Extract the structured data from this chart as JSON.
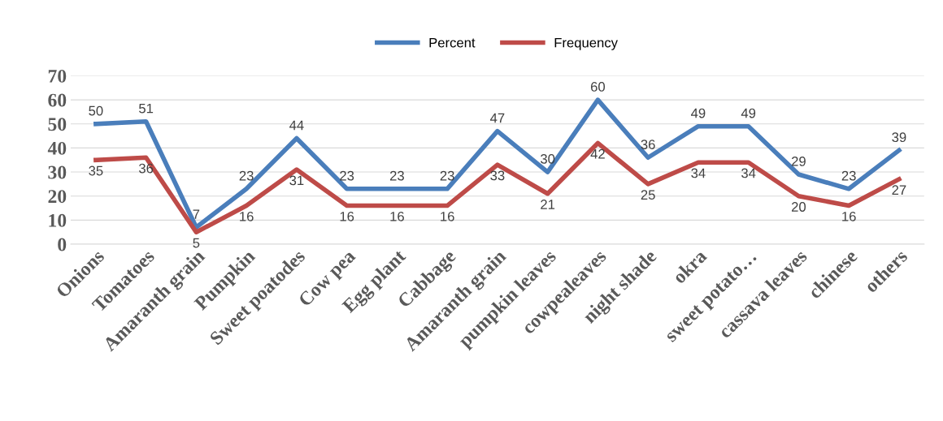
{
  "chart_data": {
    "type": "line",
    "categories": [
      "Onions",
      "Tomatoes",
      "Amaranth grain",
      "Pumpkin",
      "Sweet poatodes",
      "Cow pea",
      "Egg plant",
      "Cabbage",
      "Amaranth grain",
      "pumpkin leaves",
      "cowpealeaves",
      "night shade",
      "okra",
      "sweet potato…",
      "cassava leaves",
      "chinese",
      "others"
    ],
    "series": [
      {
        "name": "Percent",
        "color": "#4a7ebb",
        "values": [
          50,
          51,
          7,
          23,
          44,
          23,
          23,
          23,
          47,
          30,
          60,
          36,
          49,
          49,
          29,
          23,
          39
        ]
      },
      {
        "name": "Frequency",
        "color": "#be4b48",
        "values": [
          35,
          36,
          5,
          16,
          31,
          16,
          16,
          16,
          33,
          21,
          42,
          25,
          34,
          34,
          20,
          16,
          27
        ]
      }
    ],
    "ylim": [
      0,
      70
    ],
    "yticks": [
      0,
      10,
      20,
      30,
      40,
      50,
      60,
      70
    ],
    "grid": "y",
    "legend": "top",
    "data_labels": true,
    "marker": "none",
    "line_style": "solid"
  }
}
